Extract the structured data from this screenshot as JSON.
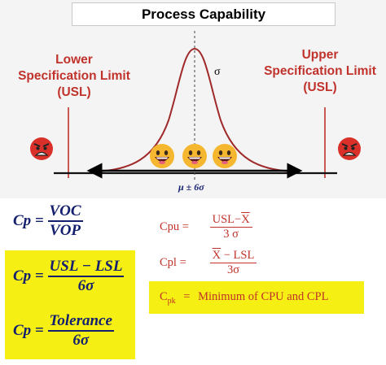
{
  "title": "Process Capability",
  "lsl_label": [
    "Lower",
    "Specification Limit",
    "(USL)"
  ],
  "usl_label": [
    "Upper",
    "Specification Limit",
    "(USL)"
  ],
  "sigma_label": "σ",
  "spread_label": "μ ± 6σ",
  "colors": {
    "limit_red": "#c0322b",
    "formula_navy": "#14206e",
    "highlight_yellow": "#f5ef14"
  },
  "icons": {
    "left_face": "angry-face-icon",
    "right_face": "angry-face-icon",
    "center_faces": "grinning-face-icon"
  },
  "formulas_left": [
    {
      "lhs": "Cp =",
      "num": "VOC",
      "den": "VOP"
    },
    {
      "lhs": "Cp =",
      "num": "USL − LSL",
      "den": "6σ"
    },
    {
      "lhs": "Cp =",
      "num": "Tolerance",
      "den": "6σ"
    }
  ],
  "formulas_right": [
    {
      "lhs": "Cpu =",
      "num_a": "USL−",
      "num_b": "X",
      "den": "3 σ"
    },
    {
      "lhs": "Cpl =",
      "num_a": "X",
      "num_b": " − LSL",
      "den": "3σ"
    },
    {
      "lhs_main": "C",
      "lhs_sub": "pk",
      "eq": "=",
      "text": "Minimum of CPU and CPL"
    }
  ]
}
